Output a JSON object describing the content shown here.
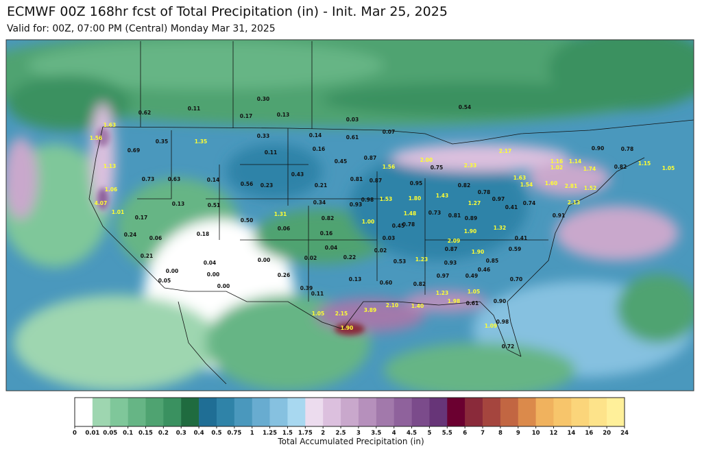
{
  "header": {
    "title": "ECMWF 00Z 168hr fcst of Total Precipitation (in) - Init. Mar 25, 2025",
    "subtitle": "Valid for: 00Z, 07:00 PM (Central) Monday Mar 31, 2025"
  },
  "map_labels": [
    "0.62",
    "0.11",
    "0.30",
    "0.17",
    "0.13",
    "0.03",
    "0.54",
    "0.07",
    "0.35",
    "0.69",
    "0.33",
    "0.14",
    "0.61",
    "0.11",
    "0.16",
    "0.45",
    "0.87",
    "0.73",
    "0.63",
    "0.14",
    "0.56",
    "0.23",
    "0.43",
    "0.21",
    "0.81",
    "0.87",
    "0.95",
    "0.82",
    "0.75",
    "0.78",
    "0.97",
    "0.13",
    "0.51",
    "0.34",
    "0.98",
    "0.93",
    "0.17",
    "0.50",
    "0.82",
    "1.00",
    "0.45",
    "0.73",
    "0.81",
    "0.89",
    "0.41",
    "0.74",
    "0.91",
    "0.06",
    "0.16",
    "0.78",
    "0.18",
    "0.24",
    "0.06",
    "0.03",
    "0.41",
    "0.02",
    "0.04",
    "0.02",
    "0.22",
    "0.87",
    "0.59",
    "0.21",
    "0.04",
    "0.00",
    "0.53",
    "0.93",
    "0.85",
    "0.00",
    "0.00",
    "0.26",
    "0.49",
    "0.46",
    "0.05",
    "0.00",
    "0.13",
    "0.60",
    "0.82",
    "0.97",
    "0.70",
    "0.39",
    "0.11",
    "0.90",
    "0.61",
    "0.98",
    "0.72",
    "0.90",
    "0.78",
    "0.82",
    "1.63",
    "1.56",
    "1.35",
    "1.13",
    "1.06",
    "4.07",
    "1.01",
    "1.56",
    "2.00",
    "2.33",
    "2.17",
    "1.16",
    "1.02",
    "1.14",
    "1.74",
    "1.15",
    "1.05",
    "1.63",
    "1.54",
    "1.60",
    "2.81",
    "1.52",
    "1.53",
    "1.80",
    "1.43",
    "1.27",
    "1.31",
    "1.48",
    "2.13",
    "1.32",
    "1.90",
    "2.09",
    "1.90",
    "1.23",
    "1.23",
    "1.05",
    "1.98",
    "1.40",
    "2.10",
    "1.05",
    "2.15",
    "3.89",
    "1.09",
    "1.90"
  ],
  "colorbar": {
    "title": "Total Accumulated Precipitation (in)",
    "ticks": [
      "0",
      "0.01",
      "0.05",
      "0.1",
      "0.15",
      "0.2",
      "0.3",
      "0.4",
      "0.5",
      "0.75",
      "1",
      "1.25",
      "1.5",
      "1.75",
      "2",
      "2.5",
      "3",
      "3.5",
      "4",
      "4.5",
      "5",
      "5.5",
      "6",
      "7",
      "8",
      "9",
      "10",
      "12",
      "14",
      "16",
      "20",
      "24"
    ],
    "colors": [
      "#ffffff",
      "#9ed6b0",
      "#7fc79a",
      "#66b585",
      "#4fa371",
      "#3a9160",
      "#1f6b3f",
      "#1f6e95",
      "#2f83a8",
      "#4a98bd",
      "#68acd0",
      "#86c1e0",
      "#a8d8f0",
      "#ecdcee",
      "#dcc0de",
      "#c9a8cc",
      "#b690bc",
      "#a279ab",
      "#8f629c",
      "#7b4b8b",
      "#673578",
      "#6b0030",
      "#8a2a3a",
      "#a5453e",
      "#c26642",
      "#db8a4b",
      "#f0b25e",
      "#f7c56b",
      "#fbd57a",
      "#fde38a",
      "#fff09a"
    ]
  }
}
